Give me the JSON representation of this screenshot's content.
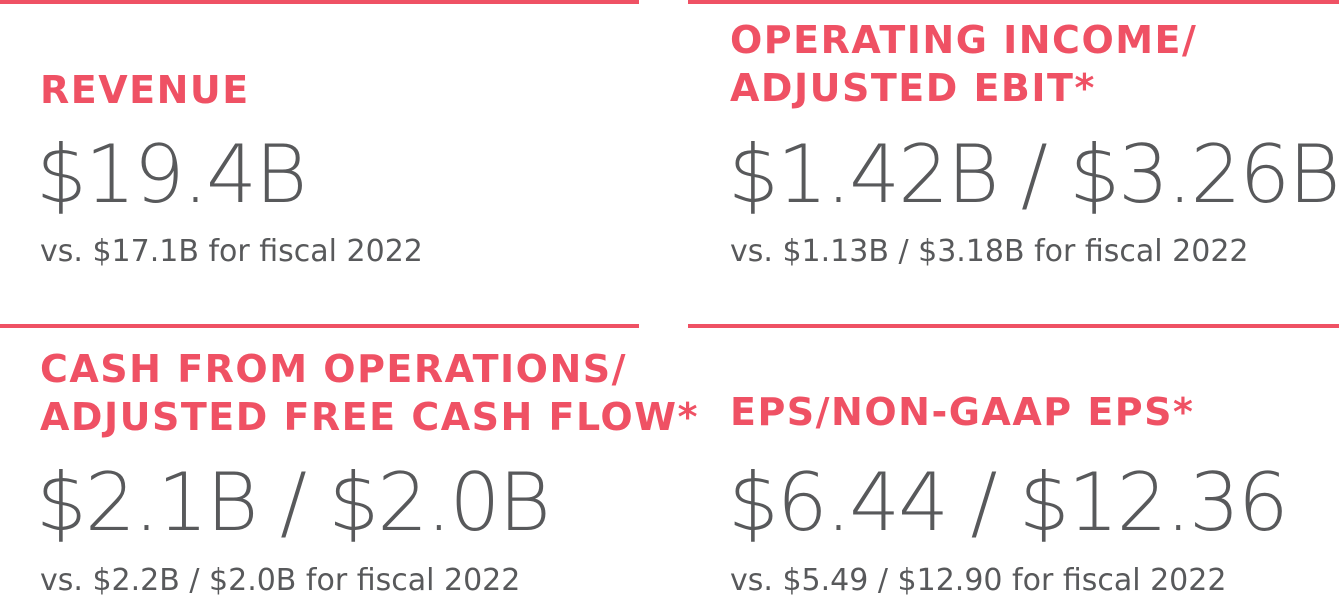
{
  "accent_color": "#ef5164",
  "text_color": "#58595b",
  "metrics": [
    {
      "title_lines": [
        "REVENUE"
      ],
      "value": "$19.4B",
      "comparison": "vs. $17.1B for fiscal 2022"
    },
    {
      "title_lines": [
        "OPERATING INCOME/",
        "ADJUSTED EBIT*"
      ],
      "value": "$1.42B / $3.26B",
      "comparison": "vs. $1.13B / $3.18B for fiscal 2022"
    },
    {
      "title_lines": [
        "CASH FROM OPERATIONS/",
        "ADJUSTED FREE CASH FLOW*"
      ],
      "value": "$2.1B / $2.0B",
      "comparison": "vs. $2.2B / $2.0B for fiscal 2022"
    },
    {
      "title_lines": [
        "EPS/NON-GAAP EPS*"
      ],
      "value": "$6.44 / $12.36",
      "comparison": "vs. $5.49 / $12.90 for fiscal 2022"
    }
  ]
}
